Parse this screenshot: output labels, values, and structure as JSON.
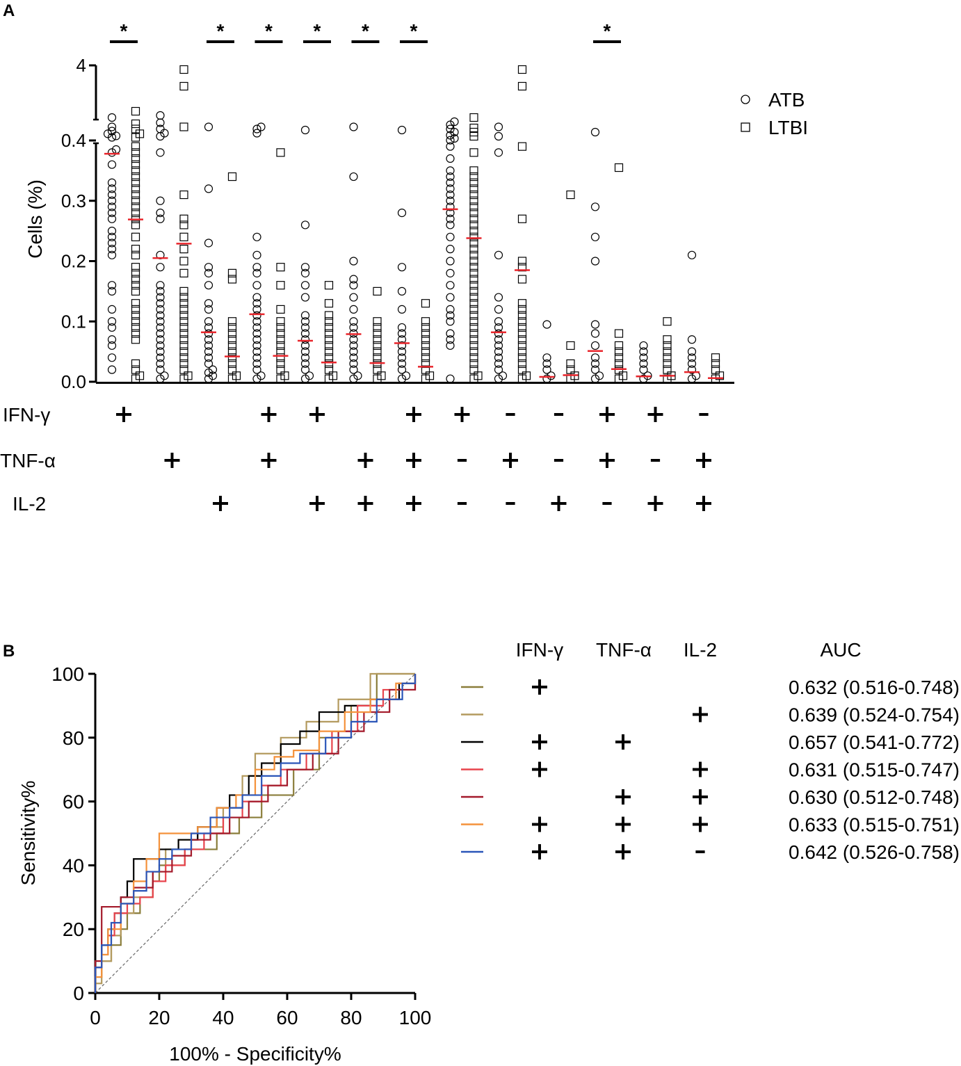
{
  "chart_data": [
    {
      "panel": "A",
      "type": "scatter",
      "ylabel": "Cells (%)",
      "ylim": [
        0,
        4
      ],
      "y_axis_break": [
        0.4,
        4
      ],
      "yticks": [
        "0.0",
        "0.1",
        "0.2",
        "0.3",
        "0.4",
        "4"
      ],
      "legend": {
        "position": "top-right",
        "entries": [
          {
            "marker": "circle",
            "label": "ATB"
          },
          {
            "marker": "square",
            "label": "LTBI"
          }
        ]
      },
      "median_color": "#e8252b",
      "row_labels": [
        "IFN-γ",
        "TNF-α",
        "IL-2"
      ],
      "signs": [
        [
          "+",
          "",
          ""
        ],
        [
          "",
          "+",
          ""
        ],
        [
          "",
          "",
          "+"
        ],
        [
          "+",
          "+",
          ""
        ],
        [
          "+",
          "",
          "+"
        ],
        [
          "",
          "+",
          "+"
        ],
        [
          "+",
          "+",
          "+"
        ],
        [
          "+",
          "-",
          "-"
        ],
        [
          "-",
          "+",
          "-"
        ],
        [
          "-",
          "-",
          "+"
        ],
        [
          "+",
          "+",
          "-"
        ],
        [
          "+",
          "-",
          "+"
        ],
        [
          "-",
          "+",
          "+"
        ]
      ],
      "significance_marker": "*",
      "significant_groups": [
        0,
        2,
        3,
        4,
        5,
        6,
        10
      ],
      "medians": {
        "ATB": [
          0.378,
          0.205,
          0.082,
          0.112,
          0.068,
          0.079,
          0.064,
          0.286,
          0.082,
          0.008,
          0.051,
          0.009,
          0.016
        ],
        "LTBI": [
          0.269,
          0.229,
          0.042,
          0.043,
          0.032,
          0.031,
          0.025,
          0.238,
          0.185,
          0.011,
          0.021,
          0.01,
          0.006
        ]
      },
      "ATB": [
        [
          0.02,
          0.04,
          0.06,
          0.07,
          0.09,
          0.1,
          0.12,
          0.15,
          0.16,
          0.21,
          0.22,
          0.23,
          0.24,
          0.25,
          0.27,
          0.28,
          0.29,
          0.3,
          0.31,
          0.32,
          0.33,
          0.36,
          0.38,
          0.385,
          0.55,
          0.62,
          0.72,
          0.85,
          1.05,
          1.5
        ],
        [
          0.005,
          0.01,
          0.02,
          0.03,
          0.04,
          0.05,
          0.06,
          0.07,
          0.08,
          0.09,
          0.1,
          0.11,
          0.12,
          0.13,
          0.14,
          0.15,
          0.16,
          0.19,
          0.21,
          0.27,
          0.28,
          0.3,
          0.38,
          0.6,
          0.75,
          0.95,
          1.25,
          1.6
        ],
        [
          0.005,
          0.01,
          0.015,
          0.02,
          0.03,
          0.04,
          0.05,
          0.06,
          0.07,
          0.08,
          0.09,
          0.1,
          0.12,
          0.13,
          0.16,
          0.18,
          0.19,
          0.23,
          0.32,
          1.05
        ],
        [
          0.005,
          0.01,
          0.02,
          0.03,
          0.04,
          0.05,
          0.06,
          0.07,
          0.08,
          0.09,
          0.1,
          0.11,
          0.12,
          0.13,
          0.14,
          0.16,
          0.18,
          0.19,
          0.21,
          0.24,
          0.75,
          0.95,
          1.05
        ],
        [
          0.005,
          0.01,
          0.02,
          0.03,
          0.04,
          0.05,
          0.06,
          0.07,
          0.08,
          0.09,
          0.1,
          0.11,
          0.14,
          0.16,
          0.18,
          0.19,
          0.26,
          0.9
        ],
        [
          0.005,
          0.01,
          0.02,
          0.03,
          0.04,
          0.05,
          0.06,
          0.07,
          0.08,
          0.09,
          0.1,
          0.12,
          0.14,
          0.16,
          0.17,
          0.2,
          0.34,
          1.05
        ],
        [
          0.005,
          0.01,
          0.02,
          0.03,
          0.04,
          0.05,
          0.06,
          0.07,
          0.08,
          0.09,
          0.12,
          0.15,
          0.19,
          0.28,
          0.9
        ],
        [
          0.005,
          0.06,
          0.07,
          0.08,
          0.1,
          0.11,
          0.12,
          0.14,
          0.16,
          0.18,
          0.2,
          0.22,
          0.24,
          0.26,
          0.27,
          0.28,
          0.29,
          0.3,
          0.31,
          0.32,
          0.33,
          0.34,
          0.35,
          0.37,
          0.39,
          0.41,
          0.5,
          0.65,
          0.8,
          0.95,
          1.15,
          1.3
        ],
        [
          0.005,
          0.01,
          0.02,
          0.03,
          0.04,
          0.05,
          0.06,
          0.07,
          0.08,
          0.09,
          0.1,
          0.12,
          0.14,
          0.21,
          0.38,
          0.6,
          1.05
        ],
        [
          0.005,
          0.01,
          0.02,
          0.03,
          0.04,
          0.095
        ],
        [
          0.005,
          0.01,
          0.02,
          0.03,
          0.04,
          0.06,
          0.08,
          0.095,
          0.2,
          0.24,
          0.29,
          0.8
        ],
        [
          0.005,
          0.01,
          0.02,
          0.03,
          0.04,
          0.05,
          0.06
        ],
        [
          0.005,
          0.01,
          0.02,
          0.03,
          0.04,
          0.05,
          0.07,
          0.21
        ]
      ],
      "LTBI": [
        [
          0.005,
          0.01,
          0.02,
          0.03,
          0.07,
          0.08,
          0.09,
          0.1,
          0.11,
          0.12,
          0.13,
          0.15,
          0.16,
          0.17,
          0.18,
          0.19,
          0.21,
          0.22,
          0.24,
          0.26,
          0.27,
          0.28,
          0.29,
          0.3,
          0.31,
          0.32,
          0.33,
          0.34,
          0.35,
          0.36,
          0.37,
          0.38,
          0.39,
          0.55,
          0.72,
          0.95,
          1.2,
          1.8
        ],
        [
          0.005,
          0.01,
          0.02,
          0.03,
          0.04,
          0.05,
          0.06,
          0.07,
          0.08,
          0.09,
          0.1,
          0.11,
          0.12,
          0.13,
          0.14,
          0.15,
          0.18,
          0.2,
          0.22,
          0.24,
          0.26,
          0.27,
          0.31,
          1.05,
          3.0,
          3.8
        ],
        [
          0.005,
          0.01,
          0.02,
          0.03,
          0.04,
          0.05,
          0.06,
          0.07,
          0.08,
          0.09,
          0.1,
          0.17,
          0.18,
          0.34
        ],
        [
          0.005,
          0.01,
          0.02,
          0.03,
          0.04,
          0.05,
          0.06,
          0.07,
          0.08,
          0.09,
          0.1,
          0.12,
          0.16,
          0.19,
          0.38
        ],
        [
          0.005,
          0.01,
          0.02,
          0.03,
          0.04,
          0.05,
          0.06,
          0.07,
          0.08,
          0.09,
          0.1,
          0.11,
          0.13,
          0.16
        ],
        [
          0.005,
          0.01,
          0.02,
          0.03,
          0.04,
          0.05,
          0.06,
          0.07,
          0.08,
          0.09,
          0.1,
          0.15
        ],
        [
          0.005,
          0.01,
          0.02,
          0.03,
          0.04,
          0.05,
          0.06,
          0.07,
          0.08,
          0.09,
          0.1,
          0.13
        ],
        [
          0.005,
          0.01,
          0.02,
          0.03,
          0.04,
          0.05,
          0.06,
          0.07,
          0.08,
          0.09,
          0.1,
          0.11,
          0.12,
          0.13,
          0.14,
          0.15,
          0.16,
          0.17,
          0.18,
          0.19,
          0.2,
          0.21,
          0.22,
          0.23,
          0.24,
          0.25,
          0.26,
          0.27,
          0.28,
          0.29,
          0.3,
          0.31,
          0.32,
          0.33,
          0.34,
          0.35,
          0.38,
          0.6,
          0.8,
          1.0,
          1.5
        ],
        [
          0.005,
          0.01,
          0.02,
          0.03,
          0.04,
          0.05,
          0.06,
          0.07,
          0.08,
          0.09,
          0.1,
          0.11,
          0.12,
          0.13,
          0.17,
          0.19,
          0.2,
          0.27,
          0.39,
          3.0,
          3.8
        ],
        [
          0.005,
          0.01,
          0.02,
          0.03,
          0.06,
          0.31
        ],
        [
          0.005,
          0.01,
          0.02,
          0.03,
          0.04,
          0.05,
          0.06,
          0.08,
          0.355
        ],
        [
          0.005,
          0.01,
          0.02,
          0.03,
          0.04,
          0.05,
          0.06,
          0.07,
          0.1
        ],
        [
          0.005,
          0.01,
          0.02,
          0.03,
          0.04
        ]
      ]
    },
    {
      "panel": "B",
      "type": "line",
      "xlabel": "100% - Specificity%",
      "ylabel": "Sensitivity%",
      "xlim": [
        0,
        100
      ],
      "ylim": [
        0,
        100
      ],
      "xticks": [
        0,
        20,
        40,
        60,
        80,
        100
      ],
      "yticks": [
        0,
        20,
        40,
        60,
        80,
        100
      ],
      "reference_line": "diagonal",
      "legend_headers": [
        "IFN-γ",
        "TNF-α",
        "IL-2",
        "AUC"
      ],
      "series": [
        {
          "color": "#8a7d3a",
          "signs": [
            "+",
            "",
            ""
          ],
          "auc": "0.632 (0.516-0.748)",
          "x": [
            0,
            0,
            2,
            5,
            8,
            10,
            14,
            18,
            20,
            28,
            38,
            45,
            52,
            62,
            70,
            80,
            88,
            100
          ],
          "y": [
            0,
            5,
            10,
            15,
            20,
            25,
            30,
            35,
            40,
            45,
            50,
            55,
            62,
            70,
            80,
            90,
            100,
            100
          ]
        },
        {
          "color": "#b39a5e",
          "signs": [
            "",
            "",
            "+"
          ],
          "auc": "0.639 (0.524-0.754)",
          "x": [
            0,
            0,
            2,
            5,
            8,
            12,
            18,
            22,
            26,
            32,
            40,
            46,
            50,
            58,
            66,
            76,
            86,
            100
          ],
          "y": [
            0,
            3,
            10,
            18,
            25,
            30,
            38,
            45,
            48,
            52,
            58,
            68,
            75,
            80,
            85,
            92,
            100,
            100
          ]
        },
        {
          "color": "#000000",
          "signs": [
            "+",
            "+",
            ""
          ],
          "auc": "0.657 (0.541-0.772)",
          "x": [
            0,
            0,
            2,
            4,
            6,
            8,
            10,
            12,
            16,
            20,
            26,
            32,
            38,
            42,
            48,
            52,
            58,
            64,
            70,
            78,
            86,
            92,
            95,
            100
          ],
          "y": [
            0,
            8,
            15,
            20,
            25,
            30,
            35,
            42,
            42,
            45,
            48,
            52,
            58,
            62,
            68,
            72,
            78,
            82,
            88,
            90,
            92,
            92,
            97,
            100
          ]
        },
        {
          "color": "#e8434c",
          "signs": [
            "+",
            "",
            "+"
          ],
          "auc": "0.631 (0.515-0.747)",
          "x": [
            0,
            0,
            2,
            4,
            6,
            10,
            14,
            18,
            22,
            28,
            34,
            40,
            46,
            52,
            58,
            66,
            74,
            82,
            90,
            100
          ],
          "y": [
            0,
            8,
            12,
            18,
            25,
            28,
            30,
            35,
            40,
            45,
            50,
            55,
            60,
            65,
            70,
            75,
            82,
            90,
            95,
            100
          ]
        },
        {
          "color": "#a3192a",
          "signs": [
            "",
            "+",
            "+"
          ],
          "auc": "0.630 (0.512-0.748)",
          "x": [
            0,
            0,
            2,
            4,
            8,
            12,
            18,
            24,
            30,
            36,
            42,
            48,
            54,
            60,
            68,
            76,
            84,
            92,
            100
          ],
          "y": [
            0,
            10,
            27,
            27,
            30,
            33,
            38,
            43,
            48,
            50,
            55,
            60,
            65,
            70,
            75,
            82,
            88,
            95,
            100
          ]
        },
        {
          "color": "#f4913a",
          "signs": [
            "+",
            "+",
            "+"
          ],
          "auc": "0.633 (0.515-0.751)",
          "x": [
            0,
            0,
            2,
            4,
            8,
            12,
            16,
            20,
            26,
            32,
            38,
            44,
            50,
            56,
            62,
            70,
            78,
            86,
            94,
            100
          ],
          "y": [
            0,
            5,
            12,
            20,
            28,
            35,
            42,
            50,
            50,
            52,
            58,
            62,
            70,
            74,
            76,
            82,
            88,
            92,
            97,
            100
          ]
        },
        {
          "color": "#2a55b8",
          "signs": [
            "+",
            "+",
            "-"
          ],
          "auc": "0.642 (0.526-0.758)",
          "x": [
            0,
            0,
            2,
            5,
            8,
            12,
            16,
            20,
            24,
            30,
            36,
            42,
            46,
            52,
            58,
            64,
            72,
            80,
            88,
            96,
            100
          ],
          "y": [
            0,
            8,
            15,
            22,
            28,
            32,
            38,
            42,
            45,
            50,
            55,
            58,
            62,
            68,
            72,
            75,
            80,
            85,
            92,
            97,
            100
          ]
        }
      ]
    }
  ],
  "panel_labels": {
    "a": "A",
    "b": "B"
  }
}
